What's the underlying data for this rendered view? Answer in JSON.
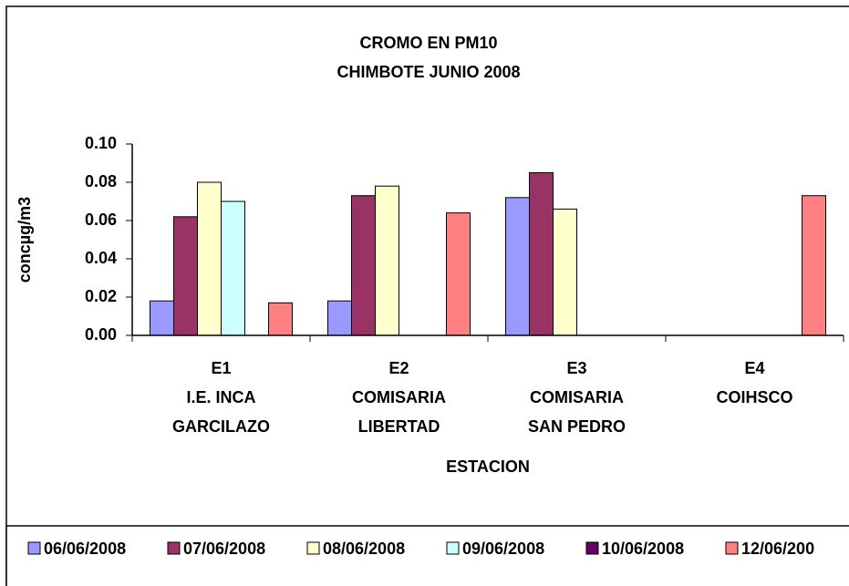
{
  "chart_data": {
    "type": "bar",
    "title": [
      "CROMO EN PM10",
      "CHIMBOTE JUNIO 2008"
    ],
    "x_label": "ESTACION",
    "y_label": "concµg/m3",
    "categories": [
      [
        "E1",
        "I.E. INCA",
        "GARCILAZO"
      ],
      [
        "E2",
        "COMISARIA",
        "LIBERTAD"
      ],
      [
        "E3",
        "COMISARIA",
        "SAN PEDRO"
      ],
      [
        "E4",
        "COIHSCO"
      ]
    ],
    "series": [
      {
        "name": "06/06/2008",
        "color": "#9999ff",
        "values": [
          0.018,
          0.018,
          0.072,
          null
        ]
      },
      {
        "name": "07/06/2008",
        "color": "#993366",
        "values": [
          0.062,
          0.073,
          0.085,
          null
        ]
      },
      {
        "name": "08/06/2008",
        "color": "#ffffcc",
        "values": [
          0.08,
          0.078,
          0.066,
          null
        ]
      },
      {
        "name": "09/06/2008",
        "color": "#ccffff",
        "values": [
          0.07,
          null,
          null,
          null
        ]
      },
      {
        "name": "10/06/2008",
        "color": "#660066",
        "values": [
          null,
          null,
          null,
          null
        ]
      },
      {
        "name": "12/06/200",
        "color": "#ff8080",
        "values": [
          0.017,
          0.064,
          null,
          0.073
        ]
      }
    ],
    "ylim": [
      0,
      0.1
    ],
    "yticks": [
      {
        "value": 0,
        "label": "0.00"
      },
      0.02,
      0.04,
      0.06,
      0.08,
      {
        "value": 0.1,
        "label": "0.10"
      }
    ],
    "grid": false,
    "legend": "bottom"
  }
}
